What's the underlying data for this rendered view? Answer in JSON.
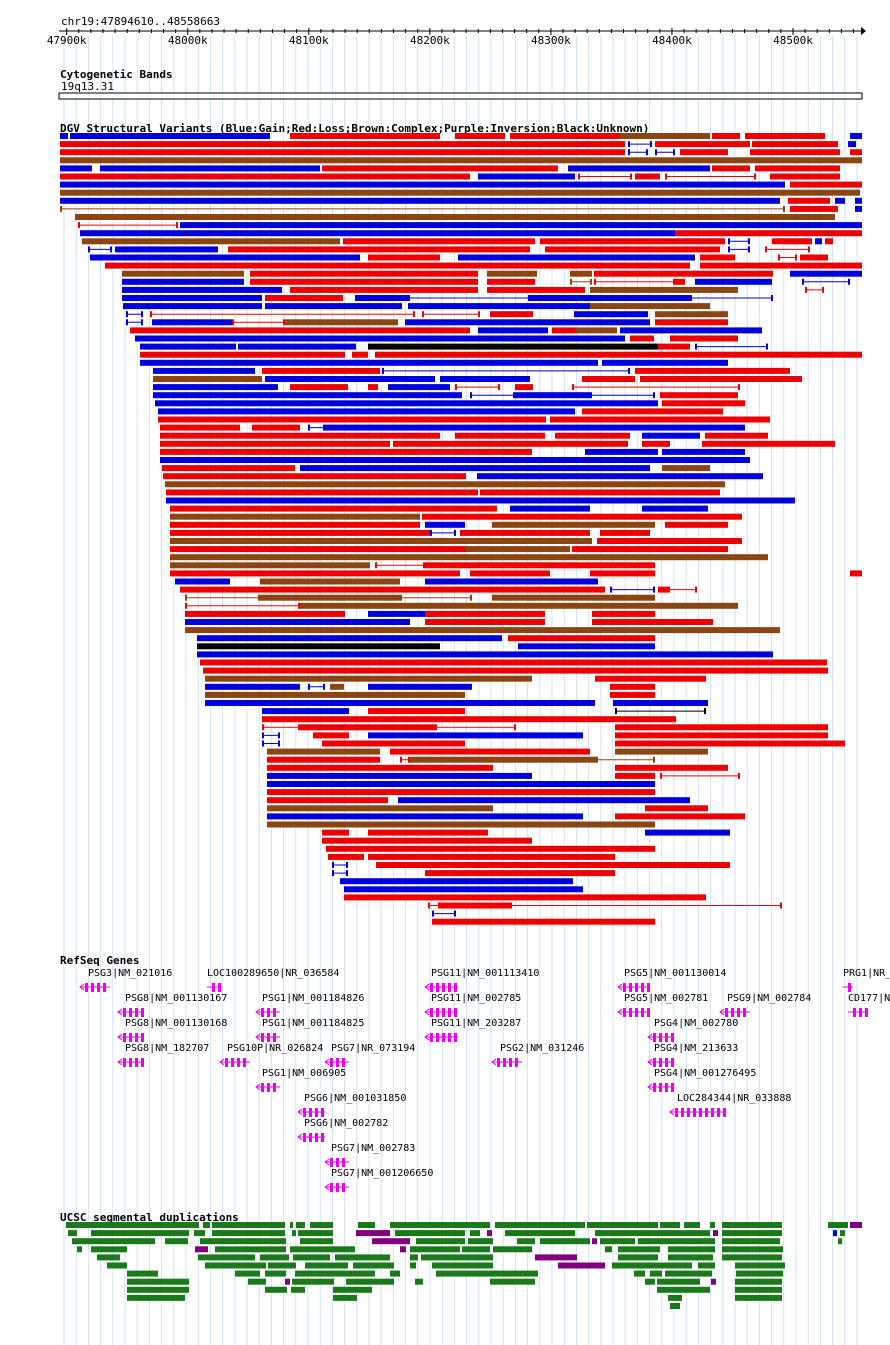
{
  "region": "chr19:47894610..48558663",
  "ruler": {
    "ticks": [
      {
        "pos": 47900,
        "label": "47900k"
      },
      {
        "pos": 48000,
        "label": "48000k"
      },
      {
        "pos": 48100,
        "label": "48100k"
      },
      {
        "pos": 48200,
        "label": "48200k"
      },
      {
        "pos": 48300,
        "label": "48300k"
      },
      {
        "pos": 48400,
        "label": "48400k"
      },
      {
        "pos": 48500,
        "label": "48500k"
      }
    ]
  },
  "tracks": {
    "cytoband": {
      "title": "Cytogenetic Bands",
      "band": "19q13.31"
    },
    "dgv": {
      "title": "DGV Structural Variants (Blue:Gain;Red:Loss;Brown:Complex;Purple:Inversion;Black:Unknown)",
      "colors": {
        "gain": "#0000dd",
        "loss": "#ee0000",
        "complex": "#8b4513",
        "inversion": "#800080",
        "unknown": "#000000"
      }
    },
    "refseq": {
      "title": "RefSeq Genes",
      "color": "#ee00ee",
      "genes": [
        "PSG3|NM_021016",
        "LOC100289650|NR_036584",
        "PSG11|NM_001113410",
        "PSG5|NM_001130014",
        "PRG1|NR_",
        "PSG8|NM_001130167",
        "PSG1|NM_001184826",
        "PSG11|NM_002785",
        "PSG5|NM_002781",
        "PSG9|NM_002784",
        "CD177|N",
        "PSG8|NM_001130168",
        "PSG1|NM_001184825",
        "PSG11|NM_203287",
        "PSG4|NM_002780",
        "PSG8|NM_182707",
        "PSG10P|NR_026824",
        "PSG7|NR_073194",
        "PSG2|NM_031246",
        "PSG4|NM_213633",
        "PSG1|NM_006905",
        "PSG4|NM_001276495",
        "PSG6|NM_001031850",
        "LOC284344|NR_033888",
        "PSG6|NM_002782",
        "PSG7|NM_002783",
        "PSG7|NM_001206650"
      ]
    },
    "segdup": {
      "title": "UCSC segmental duplications",
      "colors": {
        "green": "#1a7a1a",
        "purple": "#800080"
      }
    }
  }
}
